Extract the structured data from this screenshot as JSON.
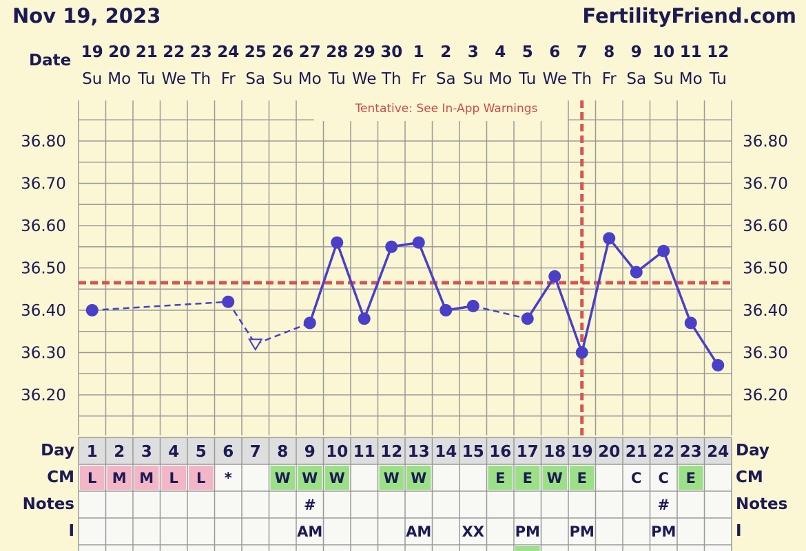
{
  "header": {
    "date": "Nov 19, 2023",
    "site": "FertilityFriend.com"
  },
  "colors": {
    "background": "#fbf7d4",
    "grid": "#9a9a9a",
    "line": "#4a3fc8",
    "coverline": "#d9534f",
    "cm_pink": "#f3b6c6",
    "cm_green": "#9be087",
    "label": "#1c1a55"
  },
  "chart_data": {
    "type": "line",
    "row_label_date": "Date",
    "row_label_day": "Day",
    "row_label_cm": "CM",
    "row_label_notes": "Notes",
    "row_label_i": "I",
    "warning": "Tentative: See In-App Warnings",
    "date_numbers": [
      "19",
      "20",
      "21",
      "22",
      "23",
      "24",
      "25",
      "26",
      "27",
      "28",
      "29",
      "30",
      "1",
      "2",
      "3",
      "4",
      "5",
      "6",
      "7",
      "8",
      "9",
      "10",
      "11",
      "12"
    ],
    "weekdays": [
      "Su",
      "Mo",
      "Tu",
      "We",
      "Th",
      "Fr",
      "Sa",
      "Su",
      "Mo",
      "Tu",
      "We",
      "Th",
      "Fr",
      "Sa",
      "Su",
      "Mo",
      "Tu",
      "We",
      "Th",
      "Fr",
      "Sa",
      "Su",
      "Mo",
      "Tu"
    ],
    "cycle_days": [
      "1",
      "2",
      "3",
      "4",
      "5",
      "6",
      "7",
      "8",
      "9",
      "10",
      "11",
      "12",
      "13",
      "14",
      "15",
      "16",
      "17",
      "18",
      "19",
      "20",
      "21",
      "22",
      "23",
      "24"
    ],
    "y_ticks": [
      "36.80",
      "36.70",
      "36.60",
      "36.50",
      "36.40",
      "36.30",
      "36.20"
    ],
    "ylim": [
      36.1,
      36.9
    ],
    "coverline": 36.465,
    "ovulation_day": 19,
    "temperatures": [
      36.4,
      null,
      null,
      null,
      null,
      36.42,
      36.32,
      null,
      36.37,
      36.56,
      36.38,
      36.55,
      36.56,
      36.4,
      36.41,
      null,
      36.38,
      36.48,
      36.3,
      36.57,
      36.49,
      36.54,
      36.37,
      36.27
    ],
    "open_marker_days": [
      7
    ],
    "dashed_segments": [
      [
        1,
        6
      ],
      [
        6,
        7
      ],
      [
        7,
        9
      ],
      [
        15,
        17
      ]
    ],
    "cm": [
      "L",
      "M",
      "M",
      "L",
      "L",
      "*",
      "",
      "W",
      "W",
      "W",
      "",
      "W",
      "W",
      "",
      "",
      "E",
      "E",
      "W",
      "E",
      "",
      "C",
      "C",
      "E",
      ""
    ],
    "cm_colors": [
      "pink",
      "pink",
      "pink",
      "pink",
      "pink",
      "none",
      "none",
      "green",
      "green",
      "green",
      "none",
      "green",
      "green",
      "none",
      "none",
      "green",
      "green",
      "green",
      "green",
      "none",
      "none",
      "none",
      "green",
      "none"
    ],
    "notes": [
      "",
      "",
      "",
      "",
      "",
      "",
      "",
      "",
      "#",
      "",
      "",
      "",
      "",
      "",
      "",
      "",
      "",
      "",
      "",
      "",
      "",
      "#",
      "",
      ""
    ],
    "i_row": [
      "",
      "",
      "",
      "",
      "",
      "",
      "",
      "",
      "AM",
      "",
      "",
      "",
      "AM",
      "",
      "XX",
      "",
      "PM",
      "",
      "PM",
      "",
      "",
      "PM",
      "",
      ""
    ]
  }
}
